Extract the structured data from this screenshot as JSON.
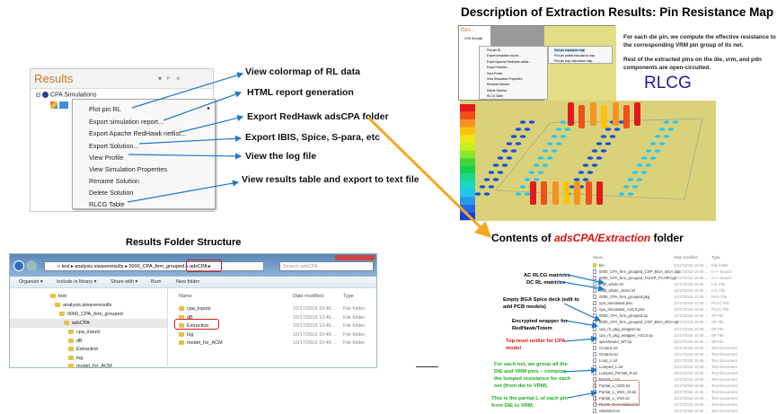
{
  "results_panel": {
    "title": "Results",
    "controls": [
      "▾",
      "ᵖ",
      "×"
    ],
    "tree_root": "CPA Simulations",
    "context_menu": [
      "Plot pin RL",
      "Export simulation report...",
      "Export Apache RedHawk netlist...",
      "Export Solution...",
      "View Profile",
      "View Simulation Properties",
      "Rename Solution",
      "Delete Solution",
      "RLCG Table"
    ]
  },
  "annotations": [
    "View colormap of RL data",
    "HTML report generation",
    "Export RedHawk adsCPA folder",
    "Export IBIS, Spice, S-para, etc",
    "View the log file",
    "View results table and export to text file"
  ],
  "folder_structure": {
    "title": "Results Folder Structure",
    "address": "« test ▸ analysis.siwaveresults ▸ 0000_CPA_fem_grouped ▸ adsCPA ▸",
    "search_placeholder": "Search adsCPA",
    "toolbar": [
      "Organize ▾",
      "Include in library ▾",
      "Share with ▾",
      "Burn",
      "New folder"
    ],
    "nav_tree": [
      "test",
      "analysis.siwaveresults",
      "0000_CPA_fem_grouped",
      "adsCPA",
      "cpa_inputs",
      "dB",
      "Extraction",
      "log",
      "model_for_ACM"
    ],
    "columns": [
      "Name",
      "Date modified",
      "Type"
    ],
    "rows": [
      {
        "name": "cpa_inputs",
        "date": "10/17/2016 10:46 ...",
        "type": "File folder"
      },
      {
        "name": "dB",
        "date": "10/17/2016 10:46 ...",
        "type": "File folder"
      },
      {
        "name": "Extraction",
        "date": "10/17/2016 10:46 ...",
        "type": "File folder"
      },
      {
        "name": "log",
        "date": "10/17/2016 10:46 ...",
        "type": "File folder"
      },
      {
        "name": "model_for_ACM",
        "date": "10/17/2016 10:46 ...",
        "type": "File folder"
      }
    ]
  },
  "description": {
    "title": "Description of Extraction Results: Pin Resistance Map",
    "para1": "For each die pin, we compute the effective resistance to the corresponding VRM pin group of its net.",
    "para2": "Rest of the extracted pins on the die, vrm, and pdn components are open-circuited.",
    "rlcg": "RLCG",
    "mini_menu": [
      "Plot pin RL",
      "Export simulation report...",
      "Export Apache RedHawk netlist...",
      "Export Solution...",
      "View Profile",
      "View Simulation Properties",
      "Rename Solution",
      "Delete Solution",
      "RLCG Table"
    ],
    "mini_submenu": [
      "Plot pin resistance map",
      "Plot pin partial inductance map",
      "Plot pin loop inductance map"
    ],
    "mini_title": "Res...",
    "mini_tree": "CPA Simulati"
  },
  "legend_colors": [
    "#e31a1c",
    "#f0501a",
    "#f7941d",
    "#fdc20e",
    "#f2e61a",
    "#c8ef1e",
    "#8ee62a",
    "#3fd63a",
    "#14d14f",
    "#1bd68e",
    "#1ad6c4",
    "#22c4ef",
    "#2499ef",
    "#1f6ae8",
    "#1c40d8"
  ],
  "contents": {
    "title_prefix": "Contents of ",
    "title_path": "adsCPA/Extraction",
    "title_suffix": " folder",
    "columns": [
      "Name",
      "Date modified",
      "Type"
    ],
    "files": [
      {
        "name": "bin",
        "date": "10/17/2016 10:46 ...",
        "type": "File folder"
      },
      {
        "name": "0000_CPA_fem_grouped_CSP_BGA_BGA.cpp",
        "date": "10/17/2016 10:46 ...",
        "type": "C++ Source"
      },
      {
        "name": "0000_CPA_fem_grouped_FCHIP_FCHIP.cpp",
        "date": "10/17/2016 10:46 ...",
        "type": "C++ Source"
      },
      {
        "name": "mult_whole.lvl",
        "date": "10/17/2016 10:46 ...",
        "type": "LVL File"
      },
      {
        "name": "mult_whole_dcres.lvl",
        "date": "10/17/2016 10:46 ...",
        "type": "LVL File"
      },
      {
        "name": "0000_CPA_fem_grouped.pkg",
        "date": "10/17/2016 10:46 ...",
        "type": "PKG File"
      },
      {
        "name": "cpa_annotated.ploc",
        "date": "10/17/2016 10:46 ...",
        "type": "PLOC File"
      },
      {
        "name": "cpa_annotated_ASCII.ploc",
        "date": "10/17/2016 10:46 ...",
        "type": "PLOC File"
      },
      {
        "name": "0000_CPA_fem_grouped.sp",
        "date": "10/17/2016 10:46 ...",
        "type": "SP File"
      },
      {
        "name": "0000_CPA_fem_grouped_CSP_BGA_BGA.sp",
        "date": "10/17/2016 10:46 ...",
        "type": "SP File"
      },
      {
        "name": "cpa_rh_pkg_wrapper.sp",
        "date": "10/17/2016 10:46 ...",
        "type": "SP File"
      },
      {
        "name": "cpa_rh_pkg_wrapper_ASCII.sp",
        "date": "10/17/2016 10:46 ...",
        "type": "SP File"
      },
      {
        "name": "spiceModel_WT.sp",
        "date": "10/17/2016 10:46 ...",
        "type": "SP File"
      },
      {
        "name": "Cmatrix.txt",
        "date": "10/17/2016 10:46 ...",
        "type": "Text Document"
      },
      {
        "name": "Gmatrix.txt",
        "date": "10/17/2016 10:46 ...",
        "type": "Text Document"
      },
      {
        "name": "Loop_L.txt",
        "date": "10/17/2016 10:46 ...",
        "type": "Text Document"
      },
      {
        "name": "Lumped_L.txt",
        "date": "10/17/2016 10:46 ...",
        "type": "Text Document"
      },
      {
        "name": "Lumped_PerNet_R.txt",
        "date": "10/17/2016 10:46 ...",
        "type": "Text Document"
      },
      {
        "name": "Partial_L.txt",
        "date": "10/17/2016 10:46 ...",
        "type": "Text Document"
      },
      {
        "name": "Partial_L_VDD.txt",
        "date": "10/17/2016 10:46 ...",
        "type": "Text Document"
      },
      {
        "name": "Partial_L_VDD_15.txt",
        "date": "10/17/2016 10:46 ...",
        "type": "Text Document"
      },
      {
        "name": "Partial_L_VSS.txt",
        "date": "10/17/2016 10:46 ...",
        "type": "Text Document"
      },
      {
        "name": "RLCG_Consolidated.txt",
        "date": "10/17/2016 10:46 ...",
        "type": "Text Document"
      },
      {
        "name": "Statistics.txt",
        "date": "10/17/2016 10:46 ...",
        "type": "Text Document"
      }
    ],
    "labels": [
      {
        "text": "AC RLCG matrices",
        "color": "#111"
      },
      {
        "text": "DC RL matrices",
        "color": "#111"
      },
      {
        "text": "Empty BGA Spice deck (edit to\nadd PCB models)",
        "color": "#111"
      },
      {
        "text": "Encrypted wrapper for\nRedHawk/Totem",
        "color": "#111"
      },
      {
        "text": "Top-level netlist for CPA\nmodel",
        "color": "#d11"
      },
      {
        "text": "For each net, we group all the\nDIE and VRM pins – compute\nthe lumped resistance for each\nnet (from die to VRM).",
        "color": "#22aa22"
      },
      {
        "text": "This is the partial L of each pin\nfrom DIE to VRM.",
        "color": "#22aa22"
      }
    ]
  },
  "colors": {
    "arrow_blue": "#1f78c8",
    "arrow_orange": "#f5a623",
    "highlight_red": "#e01b1b",
    "title_orange": "#c8782d",
    "rlcg_blue": "#1d1d9a"
  }
}
